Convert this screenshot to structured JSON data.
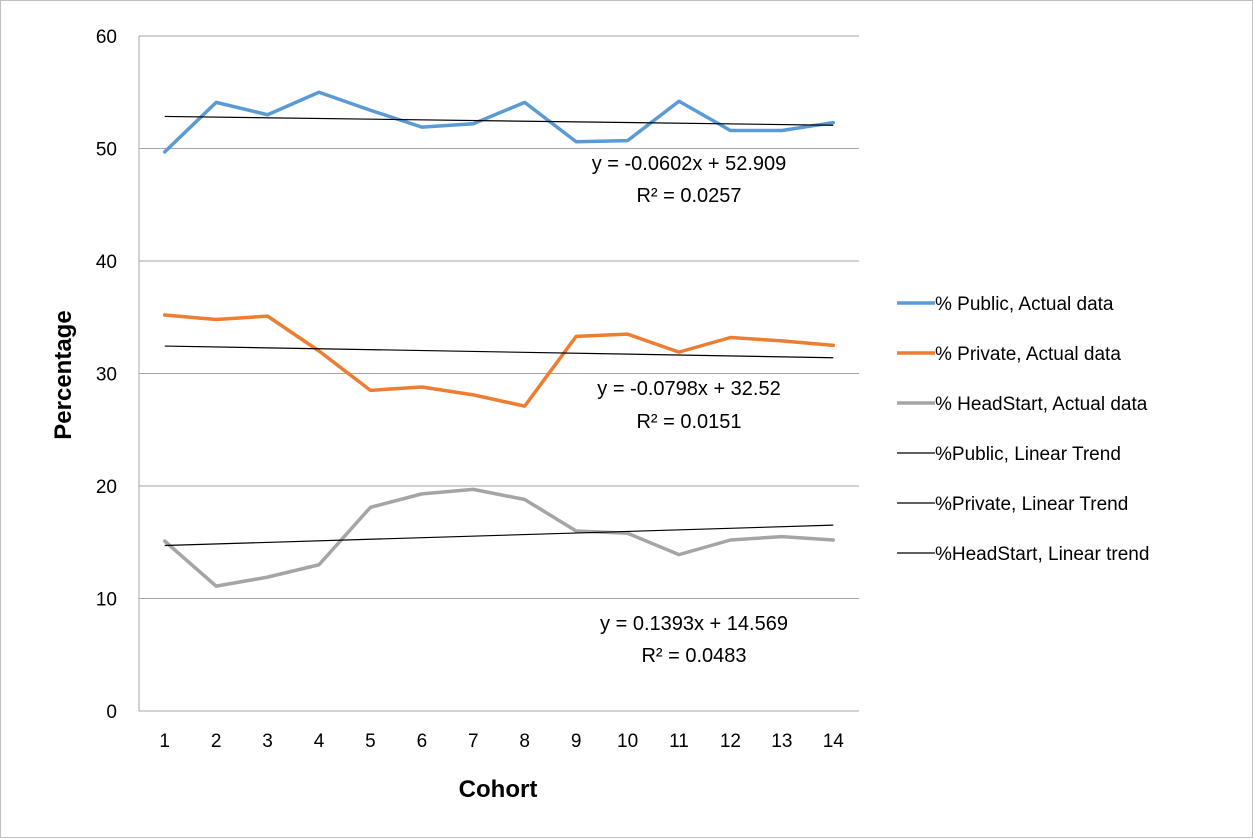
{
  "chart_data": {
    "type": "line",
    "title": "",
    "xlabel": "Cohort",
    "ylabel": "Percentage",
    "x": [
      1,
      2,
      3,
      4,
      5,
      6,
      7,
      8,
      9,
      10,
      11,
      12,
      13,
      14
    ],
    "xticks": [
      "1",
      "2",
      "3",
      "4",
      "5",
      "6",
      "7",
      "8",
      "9",
      "10",
      "11",
      "12",
      "13",
      "14"
    ],
    "ylim": [
      0,
      60
    ],
    "yticks": [
      "0",
      "10",
      "20",
      "30",
      "40",
      "50",
      "60"
    ],
    "grid": "horizontal",
    "legend_position": "right",
    "series": [
      {
        "name": "% Public, Actual data",
        "color": "#5b9bd5",
        "values": [
          49.7,
          54.1,
          53.0,
          55.0,
          53.4,
          51.9,
          52.2,
          54.1,
          50.6,
          50.7,
          54.2,
          51.6,
          51.6,
          52.3
        ]
      },
      {
        "name": "% Private, Actual data",
        "color": "#ed7d31",
        "values": [
          35.2,
          34.8,
          35.1,
          32.0,
          28.5,
          28.8,
          28.1,
          27.1,
          33.3,
          33.5,
          31.9,
          33.2,
          32.9,
          32.5
        ]
      },
      {
        "name": "% HeadStart, Actual data",
        "color": "#a5a5a5",
        "values": [
          15.1,
          11.1,
          11.9,
          13.0,
          18.1,
          19.3,
          19.7,
          18.8,
          16.0,
          15.8,
          13.9,
          15.2,
          15.5,
          15.2
        ]
      }
    ],
    "trendlines": [
      {
        "name": "%Public, Linear Trend",
        "color": "#000000",
        "slope": -0.0602,
        "intercept": 52.909,
        "equation": "y = -0.0602x + 52.909",
        "r2": "R² = 0.0257"
      },
      {
        "name": "%Private, Linear Trend",
        "color": "#000000",
        "slope": -0.0798,
        "intercept": 32.52,
        "equation": "y = -0.0798x + 32.52",
        "r2": "R² = 0.0151"
      },
      {
        "name": "%HeadStart, Linear trend",
        "color": "#000000",
        "slope": 0.1393,
        "intercept": 14.569,
        "equation": "y = 0.1393x + 14.569",
        "r2": "R² = 0.0483"
      }
    ]
  }
}
